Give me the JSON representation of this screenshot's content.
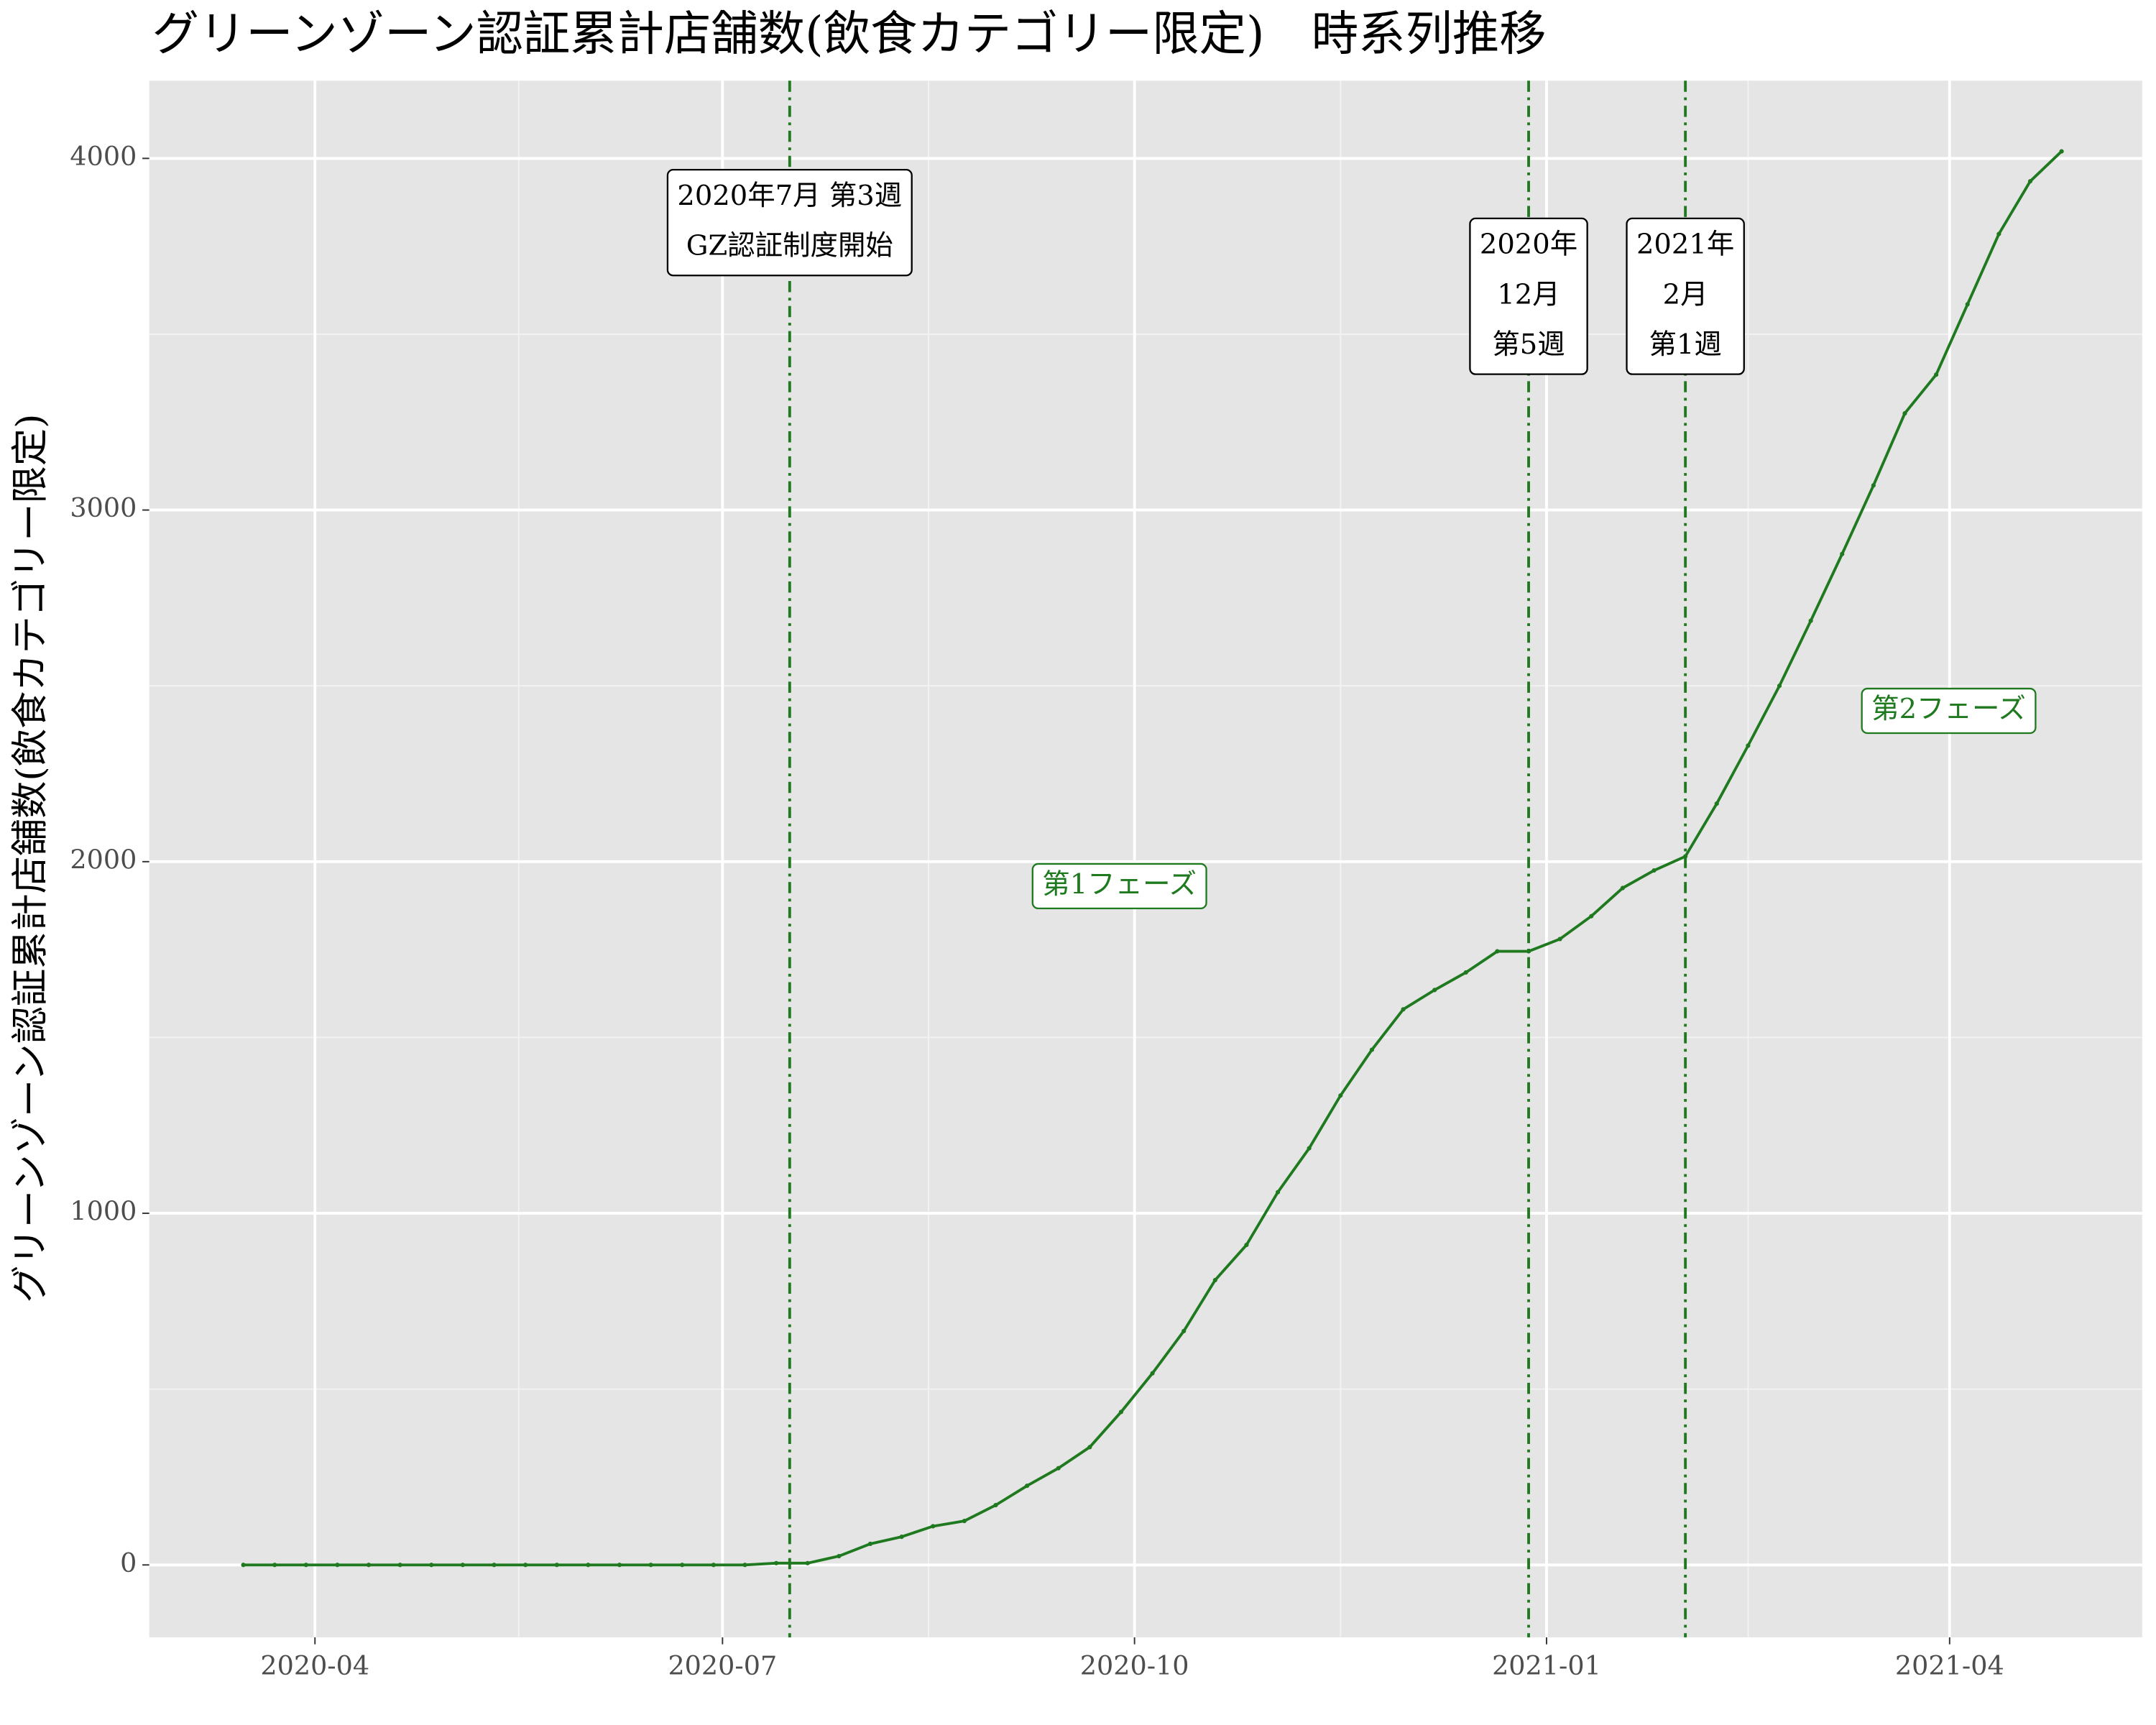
{
  "chart_data": {
    "type": "line",
    "title": "グリーンゾーン認証累計店舗数(飲食カテゴリー限定)　時系列推移",
    "y_label": "グリーンゾーン認証累計店舗数(飲食カテゴリー限定)",
    "x": [
      "2020-03-16",
      "2020-03-23",
      "2020-03-30",
      "2020-04-06",
      "2020-04-13",
      "2020-04-20",
      "2020-04-27",
      "2020-05-04",
      "2020-05-11",
      "2020-05-18",
      "2020-05-25",
      "2020-06-01",
      "2020-06-08",
      "2020-06-15",
      "2020-06-22",
      "2020-06-29",
      "2020-07-06",
      "2020-07-13",
      "2020-07-20",
      "2020-07-27",
      "2020-08-03",
      "2020-08-10",
      "2020-08-17",
      "2020-08-24",
      "2020-08-31",
      "2020-09-07",
      "2020-09-14",
      "2020-09-21",
      "2020-09-28",
      "2020-10-05",
      "2020-10-12",
      "2020-10-19",
      "2020-10-26",
      "2020-11-02",
      "2020-11-09",
      "2020-11-16",
      "2020-11-23",
      "2020-11-30",
      "2020-12-07",
      "2020-12-14",
      "2020-12-21",
      "2020-12-28",
      "2021-01-04",
      "2021-01-11",
      "2021-01-18",
      "2021-01-25",
      "2021-02-01",
      "2021-02-08",
      "2021-02-15",
      "2021-02-22",
      "2021-03-01",
      "2021-03-08",
      "2021-03-15",
      "2021-03-22",
      "2021-03-29",
      "2021-04-05",
      "2021-04-12",
      "2021-04-19",
      "2021-04-26"
    ],
    "values": [
      0,
      0,
      0,
      0,
      0,
      0,
      0,
      0,
      0,
      0,
      0,
      0,
      0,
      0,
      0,
      0,
      0,
      5,
      5,
      25,
      60,
      80,
      110,
      125,
      170,
      225,
      275,
      335,
      435,
      545,
      665,
      810,
      910,
      1060,
      1185,
      1335,
      1465,
      1580,
      1635,
      1685,
      1745,
      1745,
      1780,
      1845,
      1925,
      1975,
      2015,
      2165,
      2330,
      2500,
      2685,
      2875,
      3070,
      3275,
      3385,
      3585,
      3785,
      3935,
      4020
    ],
    "color": "#1f7a1f",
    "xlim": [
      "2020-02-24",
      "2021-05-14"
    ],
    "xticks": [
      {
        "value": "2020-04-01",
        "label": "2020-04"
      },
      {
        "value": "2020-07-01",
        "label": "2020-07"
      },
      {
        "value": "2020-10-01",
        "label": "2020-10"
      },
      {
        "value": "2021-01-01",
        "label": "2021-01"
      },
      {
        "value": "2021-04-01",
        "label": "2021-04"
      }
    ],
    "ylim": [
      -206,
      4221
    ],
    "yticks": [
      0,
      1000,
      2000,
      3000,
      4000
    ],
    "grid": true,
    "minor_grid": true,
    "vlines": [
      {
        "x": "2020-07-16",
        "label": [
          "2020年7月 第3週",
          "GZ認証制度開始"
        ]
      },
      {
        "x": "2020-12-28",
        "label": [
          "2020年",
          "12月",
          "第5週"
        ]
      },
      {
        "x": "2021-02-01",
        "label": [
          "2021年",
          "2月",
          "第1週"
        ]
      }
    ],
    "phase_labels": [
      "第1フェーズ",
      "第2フェーズ"
    ]
  }
}
